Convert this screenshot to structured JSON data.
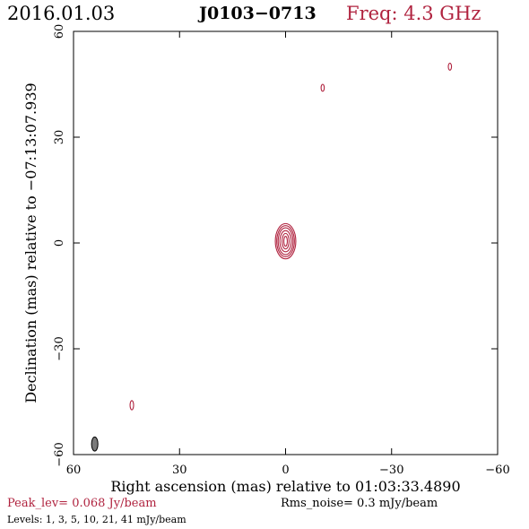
{
  "header": {
    "date": "2016.01.03",
    "source": "J0103−0713",
    "freq": "Freq: 4.3 GHz"
  },
  "colors": {
    "contour": "#b0233f",
    "beam": "#7a7a7a"
  },
  "chart_data": {
    "type": "contour",
    "xlabel": "Right ascension (mas) relative to 01:03:33.4890",
    "ylabel": "Declination (mas) relative to −07:13:07.939",
    "xlim": [
      60,
      -60
    ],
    "ylim": [
      -60,
      60
    ],
    "x_ticks": [
      60,
      30,
      0,
      -30,
      -60
    ],
    "y_ticks": [
      60,
      30,
      0,
      -30,
      -60
    ],
    "x_tick_labels": [
      "60",
      "30",
      "0",
      "−30",
      "−60"
    ],
    "y_tick_labels": [
      "60",
      "30",
      "0",
      "−30",
      "−60"
    ],
    "contour_levels_mJy": [
      1,
      3,
      5,
      10,
      21,
      41
    ],
    "components": [
      {
        "name": "core",
        "x": 0,
        "y": 0.5,
        "rings": [
          {
            "a": 2.9,
            "b": 5.0
          },
          {
            "a": 2.5,
            "b": 4.4
          },
          {
            "a": 2.1,
            "b": 3.8
          },
          {
            "a": 1.6,
            "b": 3.0
          },
          {
            "a": 1.0,
            "b": 2.2
          },
          {
            "a": 0.5,
            "b": 1.4
          }
        ]
      },
      {
        "name": "blob-a",
        "x": -10.5,
        "y": 44,
        "rings": [
          {
            "a": 0.45,
            "b": 1.0
          }
        ]
      },
      {
        "name": "blob-b",
        "x": -46.5,
        "y": 50,
        "rings": [
          {
            "a": 0.45,
            "b": 1.0
          }
        ]
      },
      {
        "name": "blob-c",
        "x": 43.5,
        "y": -46,
        "rings": [
          {
            "a": 0.5,
            "b": 1.3
          }
        ]
      }
    ],
    "beam": {
      "x": 54,
      "y": -57,
      "a": 0.9,
      "b": 2.0
    },
    "peak": "Peak_lev=  0.068 Jy/beam",
    "rms": "Rms_noise=  0.3 mJy/beam",
    "levels": "Levels:   1,   3,   5,  10,  21,  41 mJy/beam"
  }
}
